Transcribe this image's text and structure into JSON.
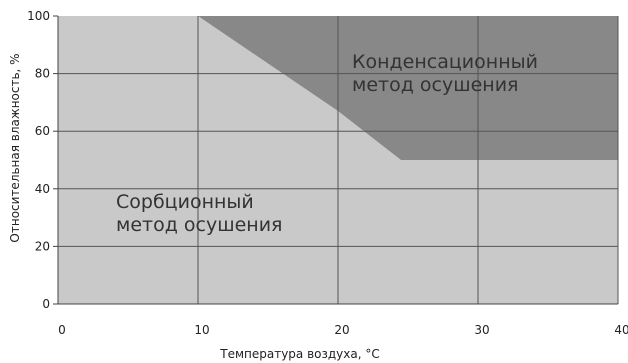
{
  "chart_data": {
    "type": "area",
    "xlabel": "Температура воздуха, °С",
    "ylabel": "Относительная влажность, %",
    "xlim": [
      0,
      40
    ],
    "ylim": [
      0,
      100
    ],
    "x_ticks": [
      "0",
      "10",
      "20",
      "30",
      "40"
    ],
    "y_ticks": [
      "0",
      "20",
      "40",
      "60",
      "80",
      "100"
    ],
    "grid": true,
    "series": [
      {
        "name": "Сорбционный метод осушения",
        "label_lines": [
          "Сорбционный",
          "метод осушения"
        ],
        "color": "#c9c9c9",
        "region": "below",
        "points": [
          [
            0,
            100
          ],
          [
            10,
            100
          ],
          [
            20,
            67
          ],
          [
            24.5,
            50
          ],
          [
            40,
            50
          ]
        ]
      },
      {
        "name": "Конденсационный метод осушения",
        "label_lines": [
          "Конденсационный",
          "метод осушения"
        ],
        "color": "#888888",
        "region": "above",
        "points": [
          [
            10,
            100
          ],
          [
            20,
            67
          ],
          [
            24.5,
            50
          ],
          [
            40,
            50
          ]
        ]
      }
    ]
  }
}
